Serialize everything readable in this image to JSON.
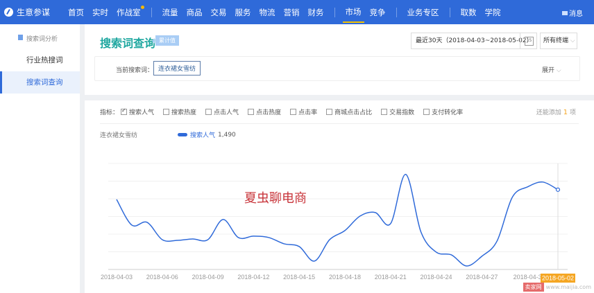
{
  "nav": {
    "brand": "生意参谋",
    "items": [
      {
        "label": "首页"
      },
      {
        "label": "实时"
      },
      {
        "label": "作战室",
        "dot": true
      },
      {
        "label": "流量"
      },
      {
        "label": "商品"
      },
      {
        "label": "交易"
      },
      {
        "label": "服务"
      },
      {
        "label": "物流"
      },
      {
        "label": "营销"
      },
      {
        "label": "财务"
      },
      {
        "label": "市场",
        "active": true
      },
      {
        "label": "竞争"
      },
      {
        "label": "业务专区"
      },
      {
        "label": "取数"
      },
      {
        "label": "学院"
      }
    ],
    "message": "消息"
  },
  "sidebar": {
    "section": "搜索词分析",
    "items": [
      {
        "label": "行业热搜词"
      },
      {
        "label": "搜索词查询",
        "selected": true
      }
    ]
  },
  "header": {
    "title": "搜索词查询",
    "badge": "累计值",
    "date_range": "最近30天（2018-04-03~2018-05-02）",
    "terminal": "所有终端",
    "query_label": "当前搜索词：",
    "query_value": "连衣裙女雪纺",
    "expand": "展开"
  },
  "metrics": {
    "label": "指标：",
    "options": [
      {
        "label": "搜索人气",
        "checked": true
      },
      {
        "label": "搜索热度"
      },
      {
        "label": "点击人气"
      },
      {
        "label": "点击热度"
      },
      {
        "label": "点击率"
      },
      {
        "label": "商城点击占比"
      },
      {
        "label": "交易指数"
      },
      {
        "label": "支付转化率"
      }
    ],
    "more_prefix": "还能添加",
    "more_count": "1",
    "more_suffix": "项"
  },
  "legend": {
    "keyword": "连衣裙女雪纺",
    "series": "搜索人气",
    "value": "1,490"
  },
  "watermark": "夏虫聊电商",
  "site": {
    "mark": "卖家网",
    "url": "www.maijia.com"
  },
  "colors": {
    "nav": "#2f6ad9",
    "line": "#2f6ad9",
    "title": "#1fa7a0",
    "highlight": "#f5a623"
  },
  "chart_data": {
    "type": "line",
    "x": [
      "2018-04-03",
      "2018-04-04",
      "2018-04-05",
      "2018-04-06",
      "2018-04-07",
      "2018-04-08",
      "2018-04-09",
      "2018-04-10",
      "2018-04-11",
      "2018-04-12",
      "2018-04-13",
      "2018-04-14",
      "2018-04-15",
      "2018-04-16",
      "2018-04-17",
      "2018-04-18",
      "2018-04-19",
      "2018-04-20",
      "2018-04-21",
      "2018-04-22",
      "2018-04-23",
      "2018-04-24",
      "2018-04-25",
      "2018-04-26",
      "2018-04-27",
      "2018-04-28",
      "2018-04-29",
      "2018-04-30",
      "2018-05-01",
      "2018-05-02"
    ],
    "series": [
      {
        "name": "搜索人气",
        "values": [
          1309,
          829,
          881,
          557,
          544,
          570,
          557,
          933,
          596,
          622,
          596,
          480,
          428,
          156,
          557,
          726,
          998,
          1063,
          855,
          1776,
          700,
          324,
          272,
          65,
          246,
          531,
          1348,
          1542,
          1633,
          1490
        ]
      }
    ],
    "xticks": [
      "2018-04-03",
      "2018-04-06",
      "2018-04-09",
      "2018-04-12",
      "2018-04-15",
      "2018-04-18",
      "2018-04-21",
      "2018-04-24",
      "2018-04-27",
      "2018-04-3"
    ],
    "highlight_label": "2018-05-02",
    "ylim": [
      0,
      1980
    ],
    "grid": true
  }
}
